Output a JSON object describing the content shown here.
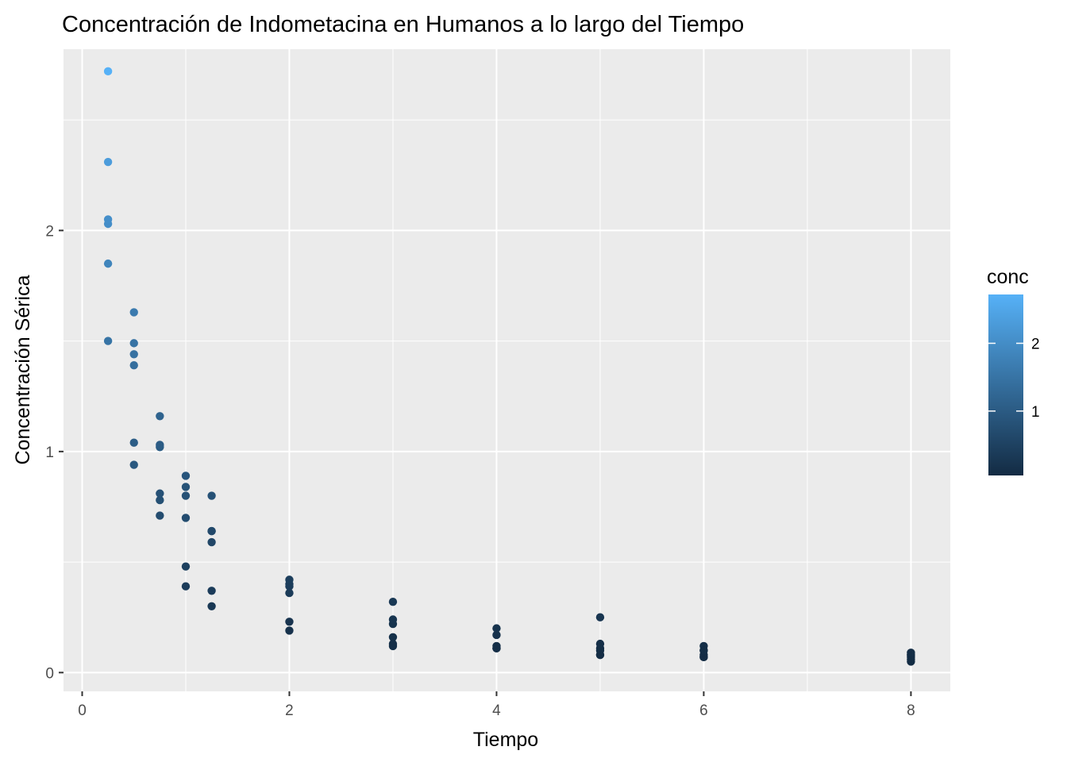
{
  "chart_data": {
    "type": "scatter",
    "title": "Concentración de Indometacina en Humanos a lo largo del Tiempo",
    "xlabel": "Tiempo",
    "ylabel": "Concentración Sérica",
    "xlim": [
      -0.18,
      8.38
    ],
    "ylim": [
      -0.085,
      2.82
    ],
    "x_ticks": [
      0,
      2,
      4,
      6,
      8
    ],
    "y_ticks": [
      0,
      1,
      2
    ],
    "x_tick_labels": [
      "0",
      "2",
      "4",
      "6",
      "8"
    ],
    "y_tick_labels": [
      "0",
      "1",
      "2"
    ],
    "grid": true,
    "panel_background": "#ebebeb",
    "grid_color": "#ffffff",
    "legend": {
      "title": "conc",
      "placement": "right",
      "type": "colorbar",
      "range": [
        0.05,
        2.72
      ],
      "ticks": [
        1,
        2
      ],
      "tick_labels": [
        "1",
        "2"
      ],
      "low_color": "#132b43",
      "high_color": "#56b1f7"
    },
    "x": [
      0.25,
      0.5,
      0.75,
      1,
      1.25,
      2,
      3,
      4,
      5,
      6,
      8,
      0.25,
      0.5,
      0.75,
      1,
      1.25,
      2,
      3,
      4,
      5,
      6,
      8,
      0.25,
      0.5,
      0.75,
      1,
      1.25,
      2,
      3,
      4,
      5,
      6,
      8,
      0.25,
      0.5,
      0.75,
      1,
      1.25,
      2,
      3,
      4,
      5,
      6,
      8,
      0.25,
      0.5,
      0.75,
      1,
      1.25,
      2,
      3,
      4,
      5,
      6,
      8,
      0.25,
      0.5,
      0.75,
      1,
      1.25,
      2,
      3,
      4,
      5,
      6,
      8
    ],
    "y": [
      1.5,
      0.94,
      0.78,
      0.48,
      0.37,
      0.19,
      0.12,
      0.11,
      0.08,
      0.07,
      0.05,
      2.03,
      1.63,
      0.71,
      0.7,
      0.64,
      0.36,
      0.32,
      0.2,
      0.25,
      0.12,
      0.08,
      2.72,
      1.49,
      1.16,
      0.8,
      0.8,
      0.39,
      0.22,
      0.12,
      0.11,
      0.08,
      0.08,
      1.85,
      1.39,
      1.02,
      0.89,
      0.59,
      0.4,
      0.16,
      0.11,
      0.1,
      0.07,
      0.07,
      2.05,
      1.04,
      0.81,
      0.39,
      0.3,
      0.23,
      0.13,
      0.11,
      0.08,
      0.1,
      0.06,
      2.31,
      1.44,
      1.03,
      0.84,
      0.64,
      0.42,
      0.24,
      0.17,
      0.13,
      0.1,
      0.09
    ]
  }
}
